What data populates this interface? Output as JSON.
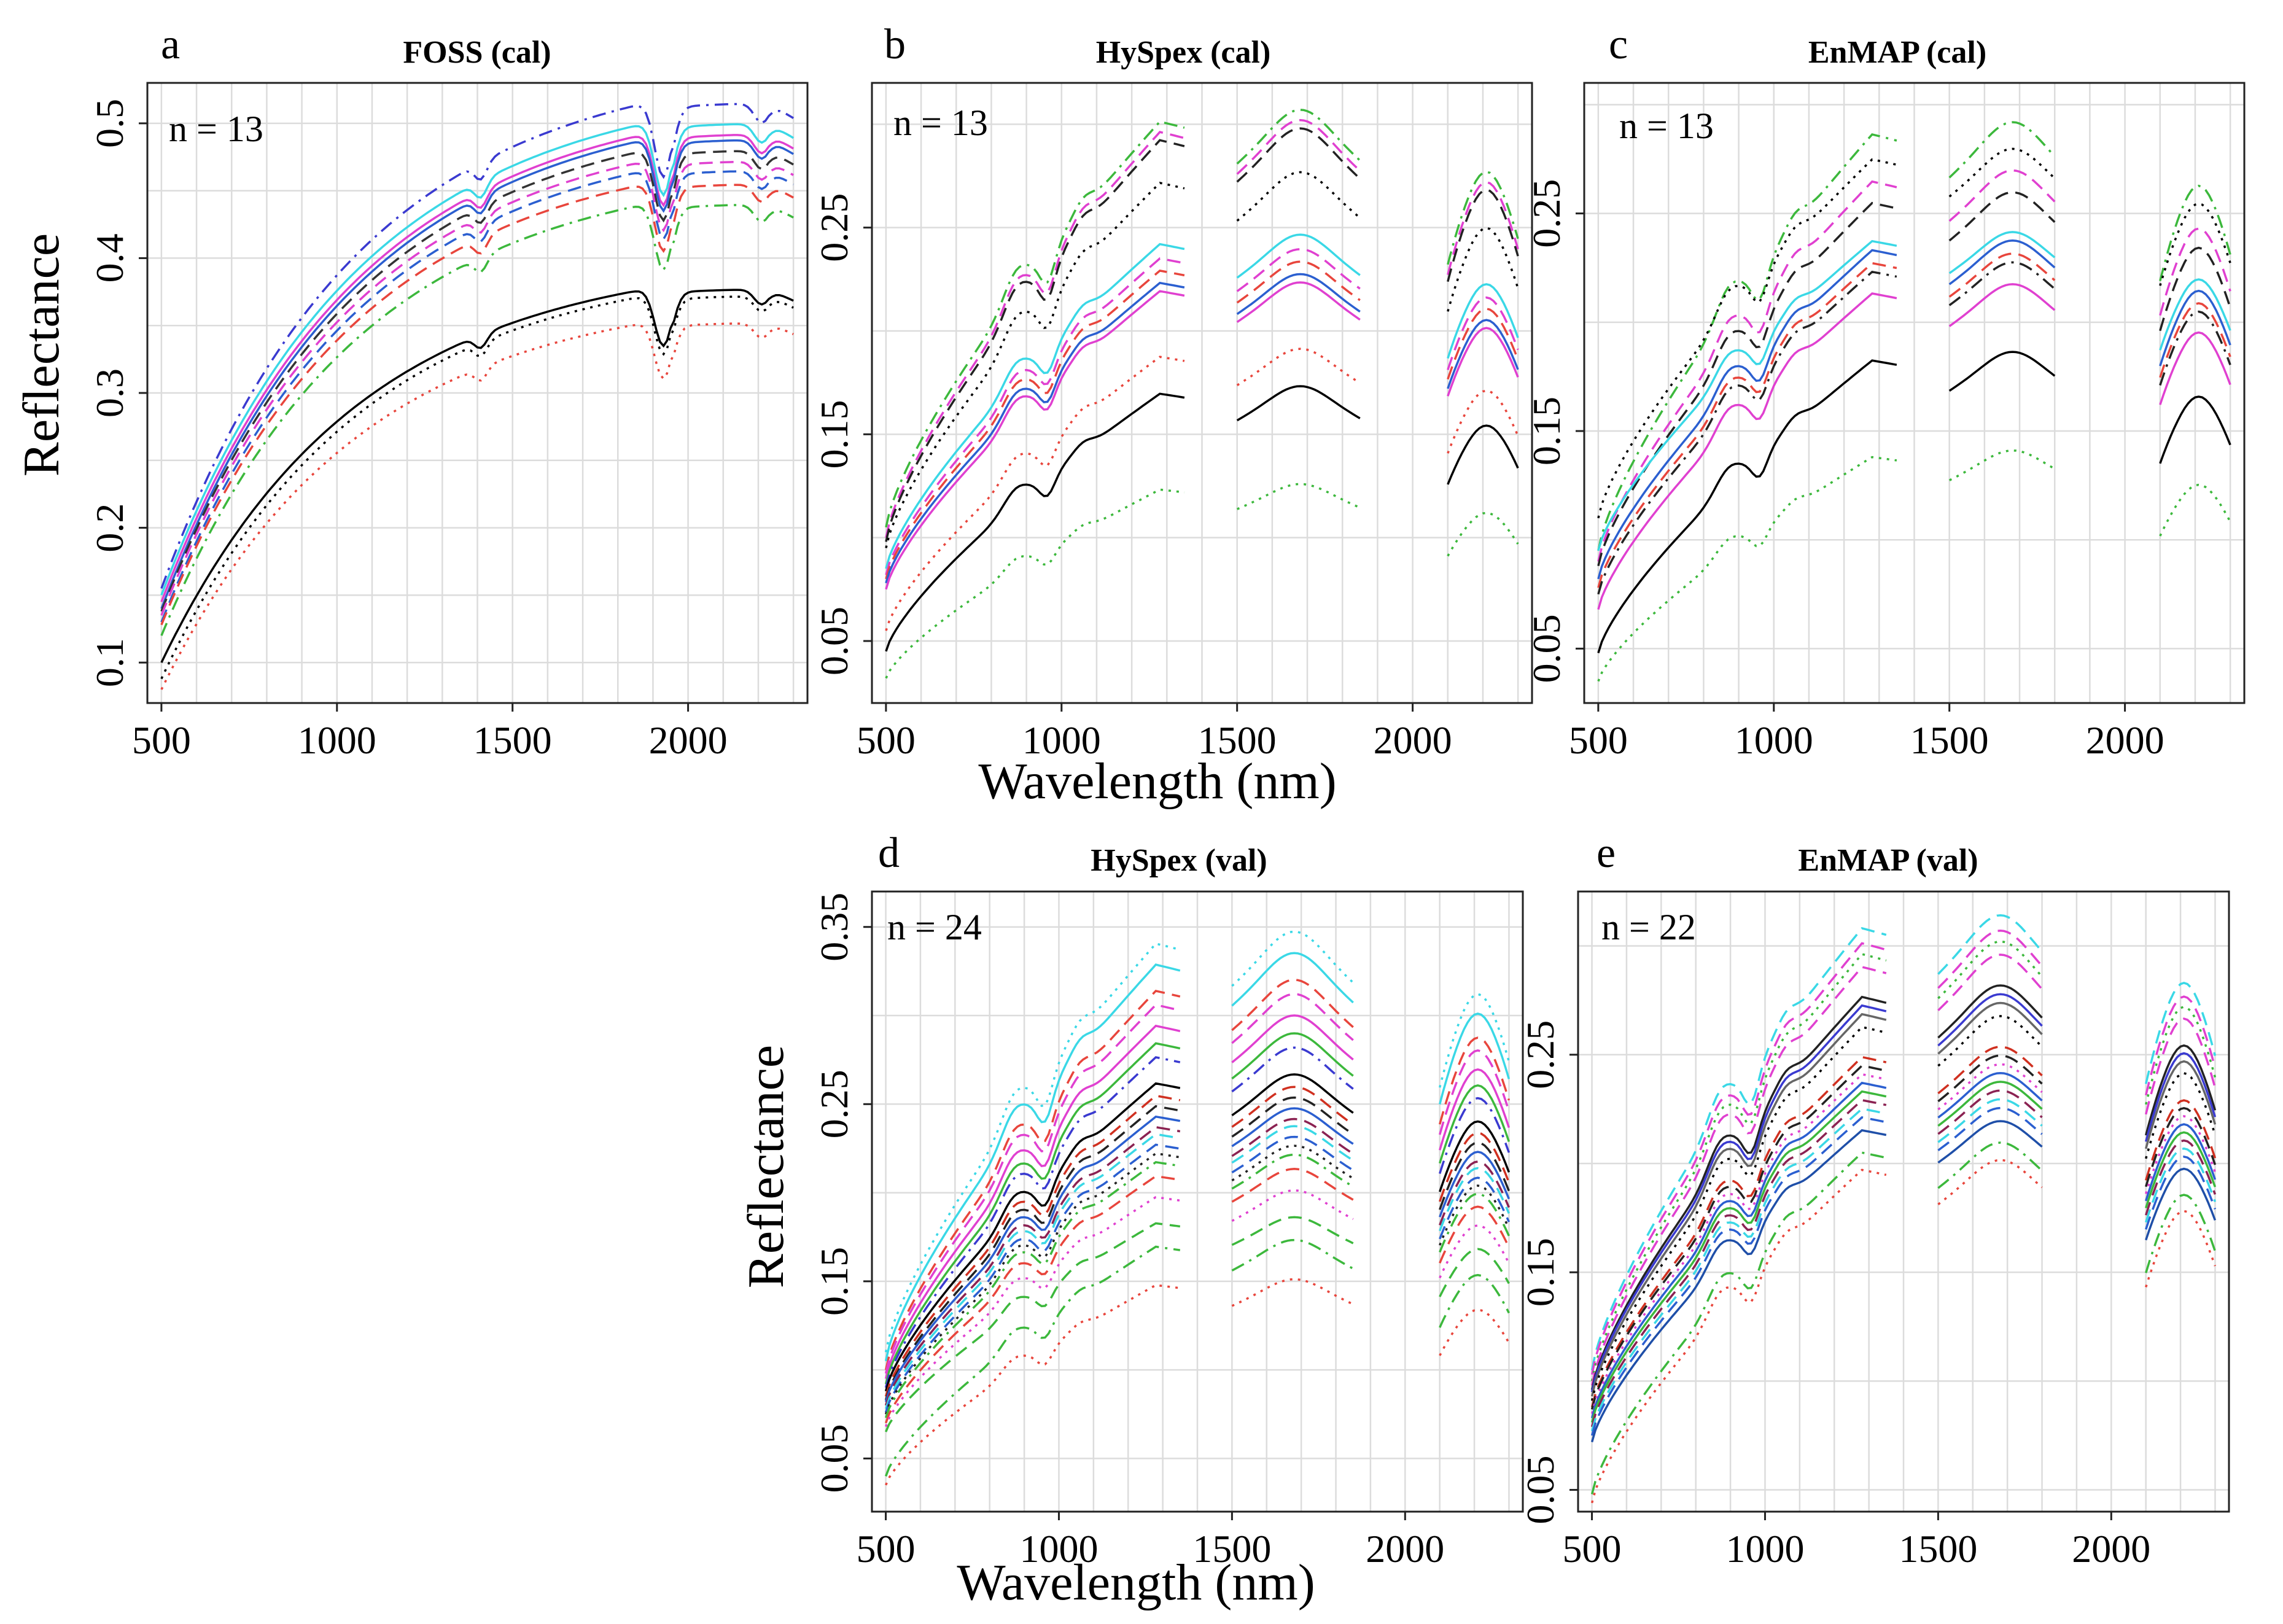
{
  "figure": {
    "shared_xlabel_top": "Wavelength (nm)",
    "shared_xlabel_bottom": "Wavelength (nm)",
    "ylabel_top": "Reflectance",
    "ylabel_bottom": "Reflectance"
  },
  "palette": [
    "#000000",
    "#e8453c",
    "#3cb83c",
    "#2b5fd0",
    "#3ad8e6",
    "#e040d0",
    "#222222",
    "#d03020"
  ],
  "chart_data": [
    {
      "id": "a",
      "letter": "a",
      "type": "line",
      "title": "FOSS (cal)",
      "n_label": "n = 13",
      "xlabel": "Wavelength (nm)",
      "ylabel": "Reflectance",
      "xlim": [
        460,
        2340
      ],
      "ylim": [
        0.07,
        0.53
      ],
      "xticks": [
        500,
        1000,
        1500,
        2000
      ],
      "yticks": [
        0.1,
        0.2,
        0.3,
        0.4,
        0.5
      ],
      "ytick_labels": [
        "0.1",
        "0.2",
        "0.3",
        "0.4",
        "0.5"
      ],
      "grid": true,
      "bands": [
        [
          500,
          2300
        ]
      ],
      "shape": "foss",
      "series": [
        {
          "name": "s1",
          "color": "#3a3ad0",
          "dash": "dashdot",
          "scale": 0.515,
          "base": 0.155
        },
        {
          "name": "s2",
          "color": "#3ad8e6",
          "dash": "solid",
          "scale": 0.5,
          "base": 0.15
        },
        {
          "name": "s3",
          "color": "#e040d0",
          "dash": "solid",
          "scale": 0.492,
          "base": 0.145
        },
        {
          "name": "s4",
          "color": "#2b5fd0",
          "dash": "solid",
          "scale": 0.488,
          "base": 0.14
        },
        {
          "name": "s5",
          "color": "#333333",
          "dash": "dashed",
          "scale": 0.48,
          "base": 0.138
        },
        {
          "name": "s6",
          "color": "#e040d0",
          "dash": "dashed",
          "scale": 0.472,
          "base": 0.135
        },
        {
          "name": "s7",
          "color": "#2b5fd0",
          "dash": "dashed",
          "scale": 0.465,
          "base": 0.13
        },
        {
          "name": "s8",
          "color": "#e8453c",
          "dash": "dashed",
          "scale": 0.455,
          "base": 0.128
        },
        {
          "name": "s9",
          "color": "#3cb83c",
          "dash": "dashdot",
          "scale": 0.44,
          "base": 0.12
        },
        {
          "name": "s10",
          "color": "#000000",
          "dash": "solid",
          "scale": 0.377,
          "base": 0.1
        },
        {
          "name": "s11",
          "color": "#000000",
          "dash": "dotted",
          "scale": 0.372,
          "base": 0.088
        },
        {
          "name": "s12",
          "color": "#e8453c",
          "dash": "dotted",
          "scale": 0.352,
          "base": 0.08
        }
      ]
    },
    {
      "id": "b",
      "letter": "b",
      "type": "line",
      "title": "HySpex (cal)",
      "n_label": "n = 13",
      "xlabel": "Wavelength (nm)",
      "ylabel": "Reflectance",
      "xlim": [
        460,
        2340
      ],
      "ylim": [
        0.02,
        0.32
      ],
      "xticks": [
        500,
        1000,
        1500,
        2000
      ],
      "yticks": [
        0.05,
        0.15,
        0.25
      ],
      "ytick_labels": [
        "0.05",
        "0.15",
        "0.25"
      ],
      "grid": true,
      "bands": [
        [
          500,
          1350
        ],
        [
          1500,
          1850
        ],
        [
          2100,
          2300
        ]
      ],
      "shape": "hyspex",
      "series": [
        {
          "name": "s1",
          "color": "#3cb83c",
          "dash": "dashdot",
          "scale": 0.305,
          "base": 0.105
        },
        {
          "name": "s2",
          "color": "#e040d0",
          "dash": "dashed",
          "scale": 0.3,
          "base": 0.1
        },
        {
          "name": "s3",
          "color": "#222222",
          "dash": "dashed",
          "scale": 0.296,
          "base": 0.098
        },
        {
          "name": "s4",
          "color": "#000000",
          "dash": "dotted",
          "scale": 0.275,
          "base": 0.095
        },
        {
          "name": "s5",
          "color": "#3ad8e6",
          "dash": "solid",
          "scale": 0.245,
          "base": 0.085
        },
        {
          "name": "s6",
          "color": "#e040d0",
          "dash": "dashed",
          "scale": 0.238,
          "base": 0.082
        },
        {
          "name": "s7",
          "color": "#e8453c",
          "dash": "dashed",
          "scale": 0.232,
          "base": 0.08
        },
        {
          "name": "s8",
          "color": "#2b5fd0",
          "dash": "solid",
          "scale": 0.226,
          "base": 0.078
        },
        {
          "name": "s9",
          "color": "#e040d0",
          "dash": "solid",
          "scale": 0.222,
          "base": 0.075
        },
        {
          "name": "s10",
          "color": "#e8453c",
          "dash": "dotted",
          "scale": 0.19,
          "base": 0.055
        },
        {
          "name": "s11",
          "color": "#000000",
          "dash": "solid",
          "scale": 0.172,
          "base": 0.045
        },
        {
          "name": "s12",
          "color": "#3cb83c",
          "dash": "dotted",
          "scale": 0.125,
          "base": 0.032
        }
      ]
    },
    {
      "id": "c",
      "letter": "c",
      "type": "line",
      "title": "EnMAP (cal)",
      "n_label": "n = 13",
      "xlabel": "Wavelength (nm)",
      "ylabel": "Reflectance",
      "xlim": [
        460,
        2340
      ],
      "ylim": [
        0.025,
        0.31
      ],
      "xticks": [
        500,
        1000,
        1500,
        2000
      ],
      "yticks": [
        0.05,
        0.15,
        0.25
      ],
      "ytick_labels": [
        "0.05",
        "0.15",
        "0.25"
      ],
      "grid": true,
      "bands": [
        [
          500,
          1350
        ],
        [
          1500,
          1800
        ],
        [
          2100,
          2300
        ]
      ],
      "shape": "enmap",
      "series": [
        {
          "name": "s1",
          "color": "#3cb83c",
          "dash": "dashdot",
          "scale": 0.29,
          "base": 0.095
        },
        {
          "name": "s2",
          "color": "#000000",
          "dash": "dotted",
          "scale": 0.278,
          "base": 0.11
        },
        {
          "name": "s3",
          "color": "#e040d0",
          "dash": "dashed",
          "scale": 0.268,
          "base": 0.09
        },
        {
          "name": "s4",
          "color": "#222222",
          "dash": "dashed",
          "scale": 0.258,
          "base": 0.088
        },
        {
          "name": "s5",
          "color": "#3ad8e6",
          "dash": "solid",
          "scale": 0.24,
          "base": 0.095
        },
        {
          "name": "s6",
          "color": "#2b5fd0",
          "dash": "solid",
          "scale": 0.236,
          "base": 0.082
        },
        {
          "name": "s7",
          "color": "#e8453c",
          "dash": "dashed",
          "scale": 0.23,
          "base": 0.078
        },
        {
          "name": "s8",
          "color": "#222222",
          "dash": "dashdot",
          "scale": 0.226,
          "base": 0.075
        },
        {
          "name": "s9",
          "color": "#e040d0",
          "dash": "solid",
          "scale": 0.216,
          "base": 0.068
        },
        {
          "name": "s10",
          "color": "#000000",
          "dash": "solid",
          "scale": 0.185,
          "base": 0.048
        },
        {
          "name": "s11",
          "color": "#3cb83c",
          "dash": "dotted",
          "scale": 0.14,
          "base": 0.035
        }
      ]
    },
    {
      "id": "d",
      "letter": "d",
      "type": "line",
      "title": "HySpex (val)",
      "n_label": "n = 24",
      "xlabel": "Wavelength (nm)",
      "ylabel": "Reflectance",
      "xlim": [
        460,
        2340
      ],
      "ylim": [
        0.02,
        0.37
      ],
      "xticks": [
        500,
        1000,
        1500,
        2000
      ],
      "yticks": [
        0.05,
        0.15,
        0.25,
        0.35
      ],
      "ytick_labels": [
        "0.05",
        "0.15",
        "0.25",
        "0.35"
      ],
      "grid": true,
      "bands": [
        [
          500,
          1350
        ],
        [
          1500,
          1850
        ],
        [
          2100,
          2300
        ]
      ],
      "shape": "hyspex",
      "series": [
        {
          "name": "s1",
          "color": "#3ad8e6",
          "dash": "dotted",
          "scale": 0.345,
          "base": 0.11
        },
        {
          "name": "s2",
          "color": "#3ad8e6",
          "dash": "solid",
          "scale": 0.333,
          "base": 0.105
        },
        {
          "name": "s3",
          "color": "#e8453c",
          "dash": "dashed",
          "scale": 0.318,
          "base": 0.1
        },
        {
          "name": "s4",
          "color": "#e040d0",
          "dash": "dashed",
          "scale": 0.31,
          "base": 0.098
        },
        {
          "name": "s5",
          "color": "#e040d0",
          "dash": "solid",
          "scale": 0.298,
          "base": 0.095
        },
        {
          "name": "s6",
          "color": "#3cb83c",
          "dash": "solid",
          "scale": 0.288,
          "base": 0.092
        },
        {
          "name": "s7",
          "color": "#3a3ad0",
          "dash": "dashdot",
          "scale": 0.28,
          "base": 0.09
        },
        {
          "name": "s8",
          "color": "#000000",
          "dash": "solid",
          "scale": 0.265,
          "base": 0.088
        },
        {
          "name": "s9",
          "color": "#d03020",
          "dash": "dashed",
          "scale": 0.258,
          "base": 0.085
        },
        {
          "name": "s10",
          "color": "#222222",
          "dash": "dashed",
          "scale": 0.252,
          "base": 0.083
        },
        {
          "name": "s11",
          "color": "#2b5fd0",
          "dash": "solid",
          "scale": 0.246,
          "base": 0.082
        },
        {
          "name": "s12",
          "color": "#8b2252",
          "dash": "dashed",
          "scale": 0.24,
          "base": 0.08
        },
        {
          "name": "s13",
          "color": "#3ad8e6",
          "dash": "dashed",
          "scale": 0.236,
          "base": 0.078
        },
        {
          "name": "s14",
          "color": "#2b5fd0",
          "dash": "dashed",
          "scale": 0.23,
          "base": 0.076
        },
        {
          "name": "s15",
          "color": "#222222",
          "dash": "dotted",
          "scale": 0.225,
          "base": 0.075
        },
        {
          "name": "s16",
          "color": "#3cb83c",
          "dash": "dashdot",
          "scale": 0.22,
          "base": 0.073
        },
        {
          "name": "s17",
          "color": "#e8453c",
          "dash": "dashed",
          "scale": 0.212,
          "base": 0.07
        },
        {
          "name": "s18",
          "color": "#e040d0",
          "dash": "dotted",
          "scale": 0.2,
          "base": 0.068
        },
        {
          "name": "s19",
          "color": "#3cb83c",
          "dash": "dashed",
          "scale": 0.185,
          "base": 0.065
        },
        {
          "name": "s20",
          "color": "#3cb83c",
          "dash": "dashdot",
          "scale": 0.172,
          "base": 0.04
        },
        {
          "name": "s21",
          "color": "#e8453c",
          "dash": "dotted",
          "scale": 0.15,
          "base": 0.035
        }
      ]
    },
    {
      "id": "e",
      "letter": "e",
      "type": "line",
      "title": "EnMAP (val)",
      "n_label": "n = 22",
      "xlabel": "Wavelength (nm)",
      "ylabel": "Reflectance",
      "xlim": [
        460,
        2340
      ],
      "ylim": [
        0.04,
        0.325
      ],
      "xticks": [
        500,
        1000,
        1500,
        2000
      ],
      "yticks": [
        0.05,
        0.15,
        0.25
      ],
      "ytick_labels": [
        "0.05",
        "0.15",
        "0.25"
      ],
      "grid": true,
      "bands": [
        [
          500,
          1350
        ],
        [
          1500,
          1800
        ],
        [
          2100,
          2300
        ]
      ],
      "shape": "enmap",
      "series": [
        {
          "name": "s1",
          "color": "#3ad8e6",
          "dash": "dashed",
          "scale": 0.312,
          "base": 0.105
        },
        {
          "name": "s2",
          "color": "#e040d0",
          "dash": "dashed",
          "scale": 0.305,
          "base": 0.103
        },
        {
          "name": "s3",
          "color": "#3cb83c",
          "dash": "dotted",
          "scale": 0.3,
          "base": 0.1
        },
        {
          "name": "s4",
          "color": "#e040d0",
          "dash": "dashed",
          "scale": 0.294,
          "base": 0.098
        },
        {
          "name": "s5",
          "color": "#222222",
          "dash": "solid",
          "scale": 0.28,
          "base": 0.096
        },
        {
          "name": "s6",
          "color": "#3a3ad0",
          "dash": "solid",
          "scale": 0.276,
          "base": 0.095
        },
        {
          "name": "s7",
          "color": "#666666",
          "dash": "solid",
          "scale": 0.272,
          "base": 0.093
        },
        {
          "name": "s8",
          "color": "#000000",
          "dash": "dotted",
          "scale": 0.266,
          "base": 0.091
        },
        {
          "name": "s9",
          "color": "#d03020",
          "dash": "dashed",
          "scale": 0.252,
          "base": 0.088
        },
        {
          "name": "s10",
          "color": "#222222",
          "dash": "dashed",
          "scale": 0.248,
          "base": 0.087
        },
        {
          "name": "s11",
          "color": "#e040d0",
          "dash": "dotted",
          "scale": 0.244,
          "base": 0.085
        },
        {
          "name": "s12",
          "color": "#2b5fd0",
          "dash": "solid",
          "scale": 0.24,
          "base": 0.083
        },
        {
          "name": "s13",
          "color": "#3cb83c",
          "dash": "solid",
          "scale": 0.236,
          "base": 0.081
        },
        {
          "name": "s14",
          "color": "#8b2252",
          "dash": "dashed",
          "scale": 0.232,
          "base": 0.079
        },
        {
          "name": "s15",
          "color": "#3ad8e6",
          "dash": "dashed",
          "scale": 0.228,
          "base": 0.077
        },
        {
          "name": "s16",
          "color": "#2b5fd0",
          "dash": "dashed",
          "scale": 0.224,
          "base": 0.075
        },
        {
          "name": "s17",
          "color": "#1f4fa8",
          "dash": "solid",
          "scale": 0.218,
          "base": 0.072
        },
        {
          "name": "s18",
          "color": "#3cb83c",
          "dash": "dashdot",
          "scale": 0.208,
          "base": 0.048
        },
        {
          "name": "s19",
          "color": "#e8453c",
          "dash": "dotted",
          "scale": 0.2,
          "base": 0.044
        }
      ]
    }
  ]
}
